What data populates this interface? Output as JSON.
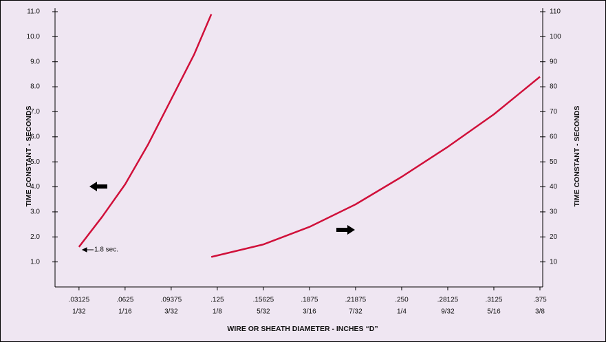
{
  "chart_data": {
    "type": "line",
    "xlabel": "WIRE OR SHEATH DIAMETER - INCHES “D”",
    "ylabel": "TIME CONSTANT - SECONDS",
    "y2label": "TIME CONSTANT - SECONDS",
    "categories": [
      ".03125",
      ".0625",
      ".09375",
      ".125",
      ".15625",
      ".1875",
      ".21875",
      ".250",
      ".28125",
      ".3125",
      ".375"
    ],
    "category_fractions": [
      "1/32",
      "1/16",
      "3/32",
      "1/8",
      "5/32",
      "3/16",
      "7/32",
      "1/4",
      "9/32",
      "5/16",
      "3/8"
    ],
    "xlim": [
      -0.52,
      10.06
    ],
    "ylim": [
      0,
      11
    ],
    "yticks": [
      {
        "value": 1,
        "label": "1.0"
      },
      {
        "value": 2,
        "label": "2.0"
      },
      {
        "value": 3,
        "label": "3.0"
      },
      {
        "value": 4,
        "label": "4.0"
      },
      {
        "value": 5,
        "label": "5.0"
      },
      {
        "value": 6,
        "label": "6.0"
      },
      {
        "value": 7,
        "label": "7.0"
      },
      {
        "value": 8,
        "label": "8.0"
      },
      {
        "value": 9,
        "label": "9.0"
      },
      {
        "value": 10,
        "label": "10.0"
      },
      {
        "value": 11,
        "label": "11.0"
      }
    ],
    "y2lim": [
      0,
      110
    ],
    "y2ticks": [
      10,
      20,
      30,
      40,
      50,
      60,
      70,
      80,
      90,
      100,
      110
    ],
    "series": [
      {
        "color": "#d0103a",
        "x": [
          0,
          0.5,
          1,
          1.5,
          2,
          2.5,
          2.87
        ],
        "values": [
          1.6,
          2.8,
          4.1,
          5.7,
          7.5,
          9.3,
          10.9
        ]
      },
      {
        "color": "#d0103a",
        "axis": "y2",
        "x": [
          2.87,
          4,
          5,
          6,
          7,
          8,
          9,
          10
        ],
        "values": [
          12,
          17,
          24,
          33,
          44,
          56,
          69,
          84
        ]
      }
    ],
    "annotation": "1.8 sec."
  }
}
